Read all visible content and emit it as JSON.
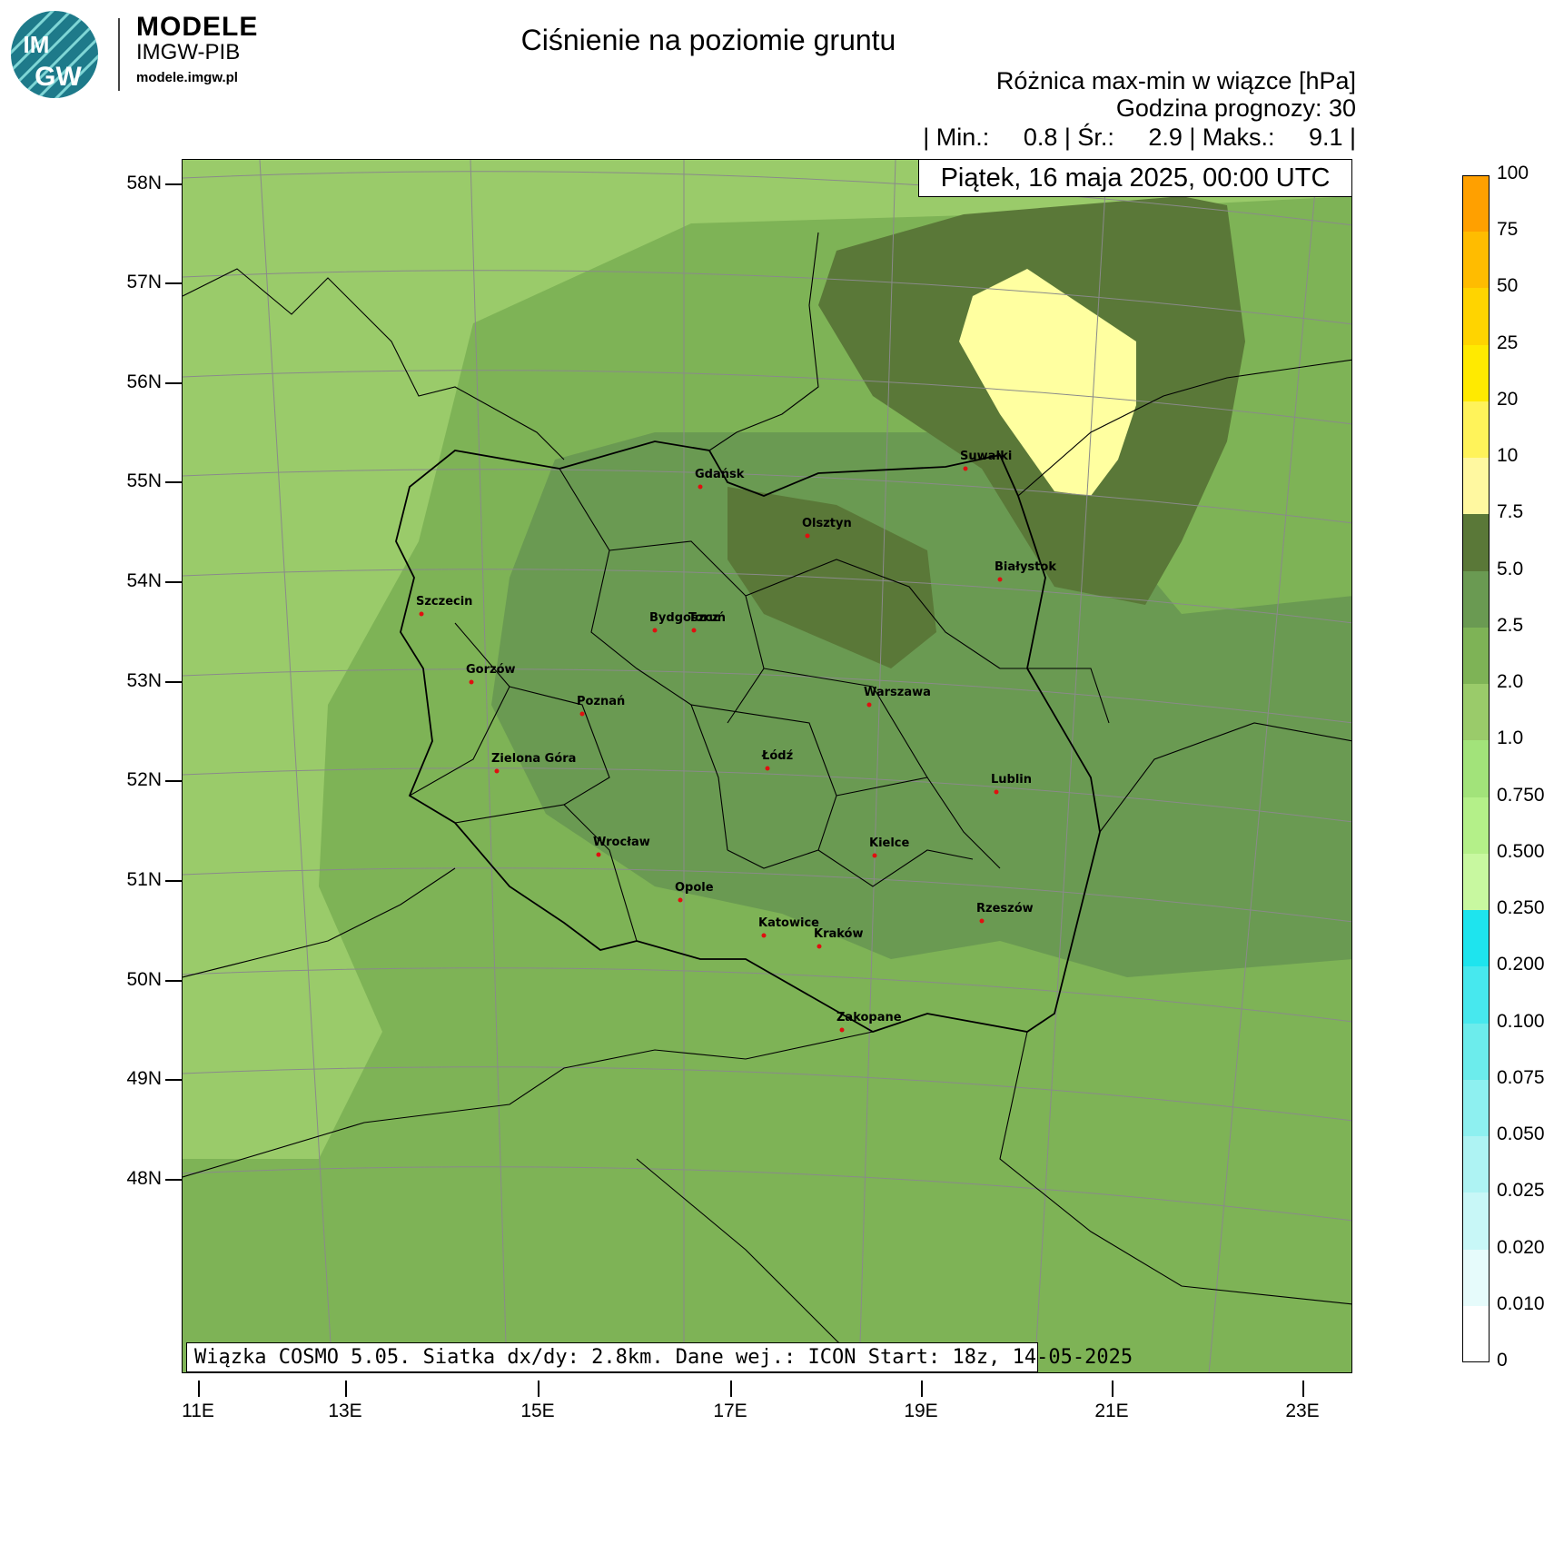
{
  "logo": {
    "badge_top": "IM",
    "badge_bottom": "GW",
    "line1": "MODELE",
    "line2": "IMGW-PIB",
    "line3": "modele.imgw.pl"
  },
  "header": {
    "title": "Ciśnienie na poziomie gruntu",
    "subtitle": "Różnica max-min w wiązce [hPa]",
    "forecast_hour": "Godzina prognozy: 30",
    "stats": "| Min.:     0.8 | Śr.:     2.9 | Maks.:     9.1 |",
    "date": "Piątek, 16 maja 2025, 00:00 UTC"
  },
  "footer_info": "Wiązka COSMO 5.05. Siatka dx/dy: 2.8km. Dane wej.: ICON Start: 18z, 14-05-2025",
  "lat_labels": [
    "58N",
    "57N",
    "56N",
    "55N",
    "54N",
    "53N",
    "52N",
    "51N",
    "50N",
    "49N",
    "48N"
  ],
  "lon_labels": [
    "11E",
    "13E",
    "15E",
    "17E",
    "19E",
    "21E",
    "23E"
  ],
  "colorbar": {
    "levels": [
      "0",
      "0.010",
      "0.020",
      "0.025",
      "0.050",
      "0.075",
      "0.100",
      "0.200",
      "0.250",
      "0.500",
      "0.750",
      "1.0",
      "2.0",
      "2.5",
      "5.0",
      "7.5",
      "10",
      "20",
      "25",
      "50",
      "75",
      "100"
    ],
    "colors": [
      "#ffffff",
      "#e6fbfb",
      "#c8f7f7",
      "#aef3f3",
      "#8ef0f0",
      "#6cecec",
      "#47e8ee",
      "#1ee4ee",
      "#c8f8a0",
      "#b4f089",
      "#a2e37a",
      "#9acb6a",
      "#7eb356",
      "#6a9a52",
      "#5a7838",
      "#fff8a0",
      "#fff35a",
      "#ffea00",
      "#ffd400",
      "#ffbc00",
      "#ffa000"
    ]
  },
  "map_colors": {
    "light": "#9acb6a",
    "medium": "#7eb356",
    "dark": "#6a9a52",
    "darker": "#5a7838",
    "max": "#ffffa0"
  },
  "cities": [
    {
      "name": "Gdańsk"
    },
    {
      "name": "Olsztyn"
    },
    {
      "name": "Suwałki"
    },
    {
      "name": "Białystok"
    },
    {
      "name": "Szczecin"
    },
    {
      "name": "Bydgoszcz"
    },
    {
      "name": "Toruń"
    },
    {
      "name": "Gorzów"
    },
    {
      "name": "Poznań"
    },
    {
      "name": "Warszawa"
    },
    {
      "name": "Łódź"
    },
    {
      "name": "Zielona Góra"
    },
    {
      "name": "Lublin"
    },
    {
      "name": "Wrocław"
    },
    {
      "name": "Kielce"
    },
    {
      "name": "Opole"
    },
    {
      "name": "Rzeszów"
    },
    {
      "name": "Katowice"
    },
    {
      "name": "Kraków"
    },
    {
      "name": "Zakopane"
    }
  ]
}
